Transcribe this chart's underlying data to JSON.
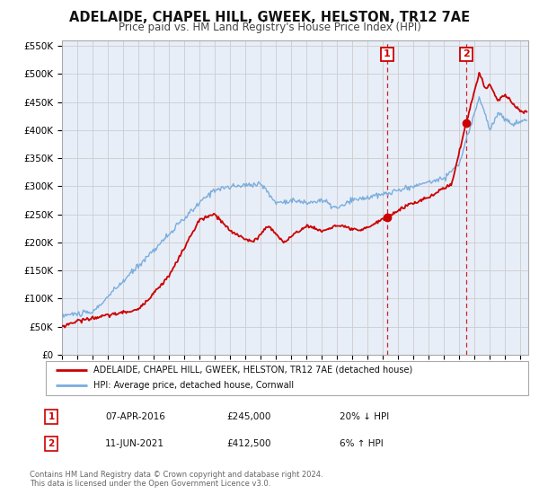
{
  "title": "ADELAIDE, CHAPEL HILL, GWEEK, HELSTON, TR12 7AE",
  "subtitle": "Price paid vs. HM Land Registry's House Price Index (HPI)",
  "ylim": [
    0,
    560000
  ],
  "xlim_start": 1995.0,
  "xlim_end": 2025.5,
  "yticks": [
    0,
    50000,
    100000,
    150000,
    200000,
    250000,
    300000,
    350000,
    400000,
    450000,
    500000,
    550000
  ],
  "ytick_labels": [
    "£0",
    "£50K",
    "£100K",
    "£150K",
    "£200K",
    "£250K",
    "£300K",
    "£350K",
    "£400K",
    "£450K",
    "£500K",
    "£550K"
  ],
  "xticks": [
    1995,
    1996,
    1997,
    1998,
    1999,
    2000,
    2001,
    2002,
    2003,
    2004,
    2005,
    2006,
    2007,
    2008,
    2009,
    2010,
    2011,
    2012,
    2013,
    2014,
    2015,
    2016,
    2017,
    2018,
    2019,
    2020,
    2021,
    2022,
    2023,
    2024,
    2025
  ],
  "grid_color": "#cccccc",
  "background_color": "#ffffff",
  "plot_bg_color": "#e8eef8",
  "red_line_color": "#cc0000",
  "blue_line_color": "#7aaddd",
  "marker_color": "#cc0000",
  "ann1_x": 2016.27,
  "ann1_y": 245000,
  "ann1_label": "1",
  "ann1_date": "07-APR-2016",
  "ann1_price": "£245,000",
  "ann1_hpi": "20% ↓ HPI",
  "ann2_x": 2021.44,
  "ann2_y": 412500,
  "ann2_label": "2",
  "ann2_date": "11-JUN-2021",
  "ann2_price": "£412,500",
  "ann2_hpi": "6% ↑ HPI",
  "legend_line1": "ADELAIDE, CHAPEL HILL, GWEEK, HELSTON, TR12 7AE (detached house)",
  "legend_line2": "HPI: Average price, detached house, Cornwall",
  "footer1": "Contains HM Land Registry data © Crown copyright and database right 2024.",
  "footer2": "This data is licensed under the Open Government Licence v3.0."
}
